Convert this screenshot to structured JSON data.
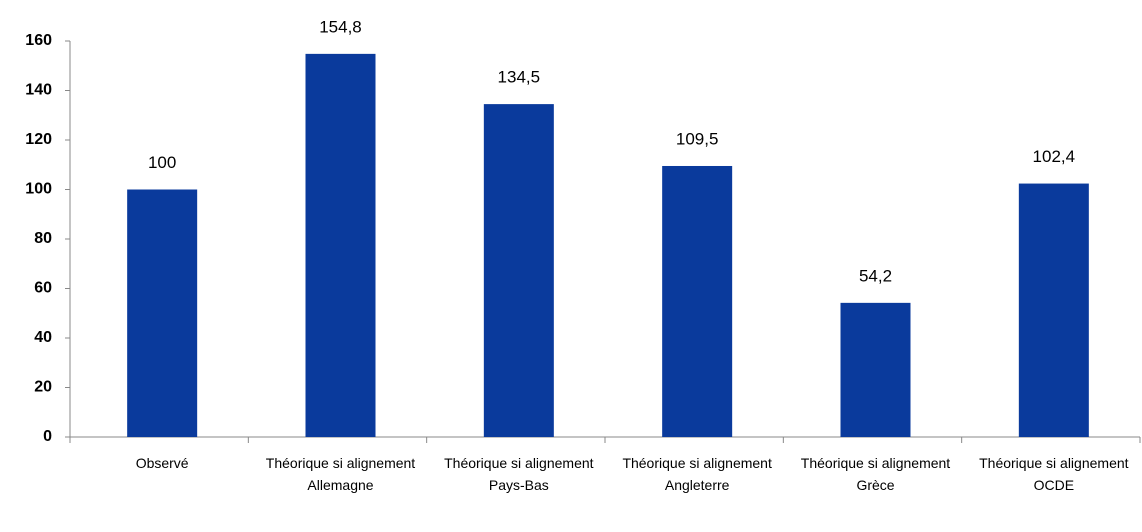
{
  "chart_data": {
    "type": "bar",
    "categories": [
      "Observé",
      "Théorique si alignement Allemagne",
      "Théorique si alignement Pays-Bas",
      "Théorique si alignement Angleterre",
      "Théorique si alignement Grèce",
      "Théorique si alignement OCDE"
    ],
    "values": [
      100,
      154.8,
      134.5,
      109.5,
      54.2,
      102.4
    ],
    "value_labels": [
      "100",
      "154,8",
      "134,5",
      "109,5",
      "54,2",
      "102,4"
    ],
    "color": "#0a3a9c",
    "ylim": [
      0,
      160
    ],
    "yticks": [
      0,
      20,
      40,
      60,
      80,
      100,
      120,
      140,
      160
    ],
    "grid": false
  }
}
